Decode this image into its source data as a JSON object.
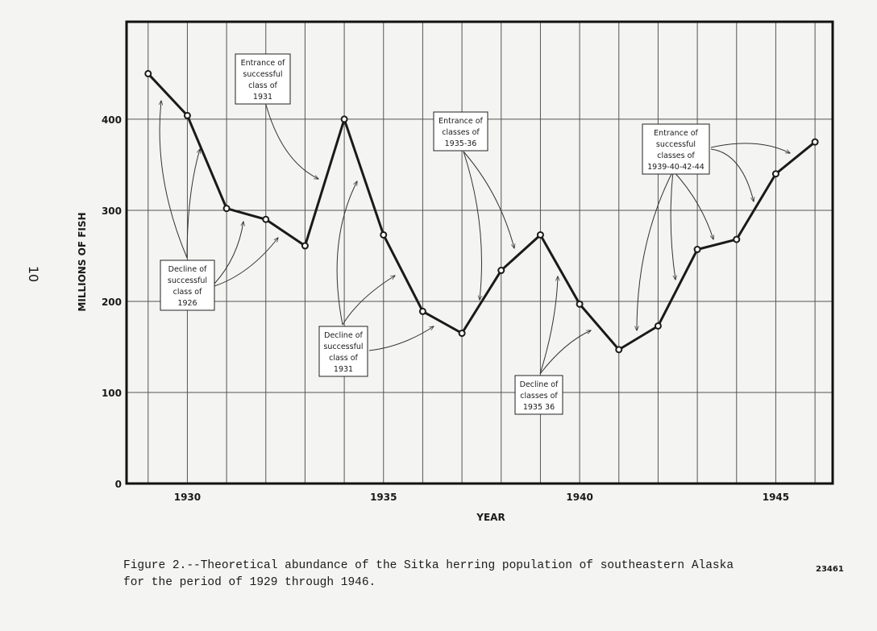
{
  "chart_data": {
    "type": "line",
    "x": [
      1929,
      1930,
      1931,
      1932,
      1933,
      1934,
      1935,
      1936,
      1937,
      1938,
      1939,
      1940,
      1941,
      1942,
      1943,
      1944,
      1945,
      1946
    ],
    "values": [
      450,
      404,
      302,
      290,
      261,
      400,
      273,
      189,
      165,
      234,
      273,
      197,
      147,
      173,
      257,
      268,
      340,
      375
    ],
    "color": "#1a1a1a",
    "xlim": [
      1928.45,
      1946.45
    ],
    "xticks": [
      1930,
      1935,
      1940,
      1945
    ],
    "ylim": [
      0,
      507
    ],
    "yticks": [
      0,
      100,
      200,
      300,
      400
    ],
    "xlabel": "YEAR",
    "ylabel": "MILLIONS OF FISH",
    "grid": true,
    "annotations": [
      {
        "text": [
          "Entrance of",
          "successful",
          "class of",
          "1931"
        ]
      },
      {
        "text": [
          "Decline of",
          "successful",
          "class of",
          "1926"
        ]
      },
      {
        "text": [
          "Decline of",
          "successful",
          "class of",
          "1931"
        ]
      },
      {
        "text": [
          "Entrance of",
          "classes of",
          "1935-36"
        ]
      },
      {
        "text": [
          "Entrance of",
          "successful",
          "classes of",
          "1939-40-42-44"
        ]
      },
      {
        "text": [
          "Decline of",
          "classes of",
          "1935 36"
        ]
      }
    ]
  },
  "caption": [
    "Figure 2.--Theoretical abundance of the Sitka herring population of southeastern Alaska",
    "for the period of 1929 through 1946."
  ],
  "stamp": "23461",
  "page_number": "10"
}
